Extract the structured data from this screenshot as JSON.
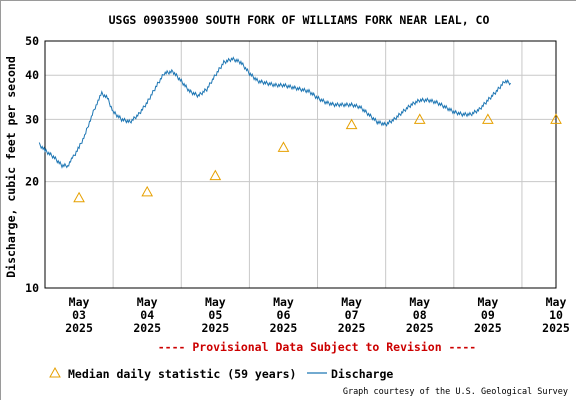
{
  "chart_data": {
    "type": "line",
    "title": "USGS 09035900 SOUTH FORK OF WILLIAMS FORK NEAR LEAL, CO",
    "ylabel": "Discharge, cubic feet per second",
    "yscale": "log",
    "ylim": [
      10,
      50
    ],
    "yticks": [
      10,
      20,
      30,
      40,
      50
    ],
    "xlim": [
      "2025-05-03 00:00",
      "2025-05-10 12:00"
    ],
    "xticks": [
      {
        "date": "2025-05-03",
        "label": [
          "May",
          "03",
          "2025"
        ]
      },
      {
        "date": "2025-05-04",
        "label": [
          "May",
          "04",
          "2025"
        ]
      },
      {
        "date": "2025-05-05",
        "label": [
          "May",
          "05",
          "2025"
        ]
      },
      {
        "date": "2025-05-06",
        "label": [
          "May",
          "06",
          "2025"
        ]
      },
      {
        "date": "2025-05-07",
        "label": [
          "May",
          "07",
          "2025"
        ]
      },
      {
        "date": "2025-05-08",
        "label": [
          "May",
          "08",
          "2025"
        ]
      },
      {
        "date": "2025-05-09",
        "label": [
          "May",
          "09",
          "2025"
        ]
      },
      {
        "date": "2025-05-10",
        "label": [
          "May",
          "10",
          "2025"
        ]
      }
    ],
    "grid": true,
    "legend_position": "bottom",
    "provisional_note": "---- Provisional Data Subject to Revision ----",
    "credit": "Graph courtesy of the U.S. Geological Survey",
    "series": [
      {
        "name": "Discharge",
        "kind": "line",
        "color": "#1f77b4",
        "points": [
          [
            "2025-05-02 22:00",
            25.5
          ],
          [
            "2025-05-03 00:00",
            24.5
          ],
          [
            "2025-05-03 03:00",
            23.5
          ],
          [
            "2025-05-03 06:00",
            22.2
          ],
          [
            "2025-05-03 08:00",
            22.2
          ],
          [
            "2025-05-03 10:00",
            23.5
          ],
          [
            "2025-05-03 12:00",
            25.0
          ],
          [
            "2025-05-03 14:00",
            27.0
          ],
          [
            "2025-05-03 16:00",
            30.0
          ],
          [
            "2025-05-03 18:00",
            33.0
          ],
          [
            "2025-05-03 20:00",
            35.5
          ],
          [
            "2025-05-03 22:00",
            34.5
          ],
          [
            "2025-05-04 00:00",
            31.5
          ],
          [
            "2025-05-04 03:00",
            30.0
          ],
          [
            "2025-05-04 06:00",
            29.5
          ],
          [
            "2025-05-04 09:00",
            31.0
          ],
          [
            "2025-05-04 12:00",
            33.5
          ],
          [
            "2025-05-04 15:00",
            37.0
          ],
          [
            "2025-05-04 18:00",
            40.5
          ],
          [
            "2025-05-04 21:00",
            41.0
          ],
          [
            "2025-05-05 00:00",
            38.5
          ],
          [
            "2025-05-05 03:00",
            36.0
          ],
          [
            "2025-05-05 06:00",
            35.0
          ],
          [
            "2025-05-05 09:00",
            36.5
          ],
          [
            "2025-05-05 12:00",
            40.0
          ],
          [
            "2025-05-05 15:00",
            43.5
          ],
          [
            "2025-05-05 18:00",
            44.5
          ],
          [
            "2025-05-05 21:00",
            43.5
          ],
          [
            "2025-05-06 00:00",
            40.5
          ],
          [
            "2025-05-06 03:00",
            38.5
          ],
          [
            "2025-05-06 06:00",
            38.0
          ],
          [
            "2025-05-06 09:00",
            37.5
          ],
          [
            "2025-05-06 12:00",
            37.5
          ],
          [
            "2025-05-06 15:00",
            37.0
          ],
          [
            "2025-05-06 18:00",
            36.5
          ],
          [
            "2025-05-06 21:00",
            36.0
          ],
          [
            "2025-05-07 00:00",
            34.5
          ],
          [
            "2025-05-07 03:00",
            33.5
          ],
          [
            "2025-05-07 06:00",
            33.0
          ],
          [
            "2025-05-07 09:00",
            33.0
          ],
          [
            "2025-05-07 12:00",
            33.0
          ],
          [
            "2025-05-07 15:00",
            32.5
          ],
          [
            "2025-05-07 18:00",
            31.0
          ],
          [
            "2025-05-07 21:00",
            29.5
          ],
          [
            "2025-05-08 00:00",
            29.0
          ],
          [
            "2025-05-08 03:00",
            30.0
          ],
          [
            "2025-05-08 06:00",
            31.5
          ],
          [
            "2025-05-08 09:00",
            33.0
          ],
          [
            "2025-05-08 12:00",
            34.0
          ],
          [
            "2025-05-08 15:00",
            34.0
          ],
          [
            "2025-05-08 18:00",
            33.5
          ],
          [
            "2025-05-08 21:00",
            32.5
          ],
          [
            "2025-05-09 00:00",
            31.5
          ],
          [
            "2025-05-09 03:00",
            31.0
          ],
          [
            "2025-05-09 06:00",
            31.0
          ],
          [
            "2025-05-09 09:00",
            32.0
          ],
          [
            "2025-05-09 12:00",
            34.0
          ],
          [
            "2025-05-09 15:00",
            36.0
          ],
          [
            "2025-05-09 18:00",
            38.5
          ],
          [
            "2025-05-09 20:00",
            38.0
          ]
        ]
      },
      {
        "name": "Median daily statistic (59 years)",
        "kind": "marker",
        "marker": "triangle",
        "color": "#e6a000",
        "points": [
          [
            "2025-05-03 12:00",
            18.0
          ],
          [
            "2025-05-04 12:00",
            18.7
          ],
          [
            "2025-05-05 12:00",
            20.8
          ],
          [
            "2025-05-06 12:00",
            25.0
          ],
          [
            "2025-05-07 12:00",
            29.0
          ],
          [
            "2025-05-08 12:00",
            30.0
          ],
          [
            "2025-05-09 12:00",
            30.0
          ],
          [
            "2025-05-10 12:00",
            30.0
          ]
        ]
      }
    ]
  }
}
